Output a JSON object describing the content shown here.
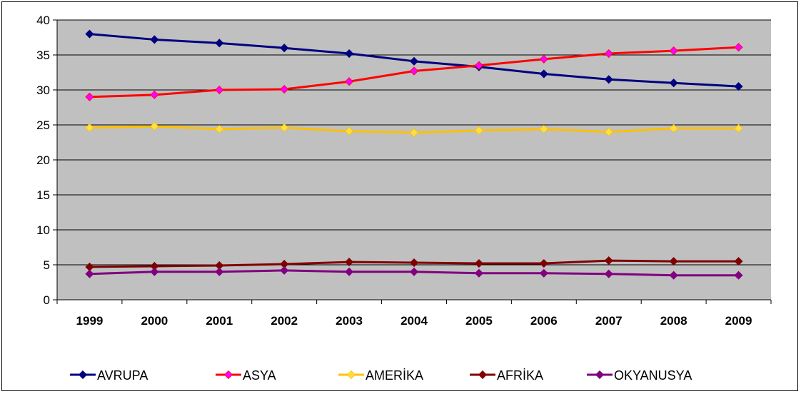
{
  "chart_data": {
    "type": "line",
    "title": "",
    "xlabel": "",
    "ylabel": "",
    "categories": [
      "1999",
      "2000",
      "2001",
      "2002",
      "2003",
      "2004",
      "2005",
      "2006",
      "2007",
      "2008",
      "2009"
    ],
    "ylim": [
      0,
      40
    ],
    "yticks": [
      "0",
      "5",
      "10",
      "15",
      "20",
      "25",
      "30",
      "35",
      "40"
    ],
    "grid": true,
    "legend_position": "bottom",
    "series": [
      {
        "name": "AVRUPA",
        "color": "#000080",
        "marker_color": "#000080",
        "values": [
          38.0,
          37.2,
          36.7,
          36.0,
          35.2,
          34.1,
          33.3,
          32.3,
          31.5,
          31.0,
          30.5
        ]
      },
      {
        "name": "ASYA",
        "color": "#ff0000",
        "marker_color": "#ff00ff",
        "values": [
          29.0,
          29.3,
          30.0,
          30.1,
          31.2,
          32.7,
          33.5,
          34.4,
          35.2,
          35.6,
          36.1
        ]
      },
      {
        "name": "AMERİKA",
        "color": "#ffc000",
        "marker_color": "#ffe040",
        "values": [
          24.6,
          24.8,
          24.4,
          24.6,
          24.1,
          23.9,
          24.2,
          24.4,
          24.0,
          24.5,
          24.5
        ]
      },
      {
        "name": "AFRİKA",
        "color": "#800000",
        "marker_color": "#800000",
        "values": [
          4.7,
          4.8,
          4.9,
          5.1,
          5.4,
          5.3,
          5.2,
          5.2,
          5.6,
          5.5,
          5.5
        ]
      },
      {
        "name": "OKYANUSYA",
        "color": "#800080",
        "marker_color": "#800080",
        "values": [
          3.7,
          4.0,
          4.0,
          4.2,
          4.0,
          4.0,
          3.8,
          3.8,
          3.7,
          3.5,
          3.5
        ]
      }
    ]
  }
}
